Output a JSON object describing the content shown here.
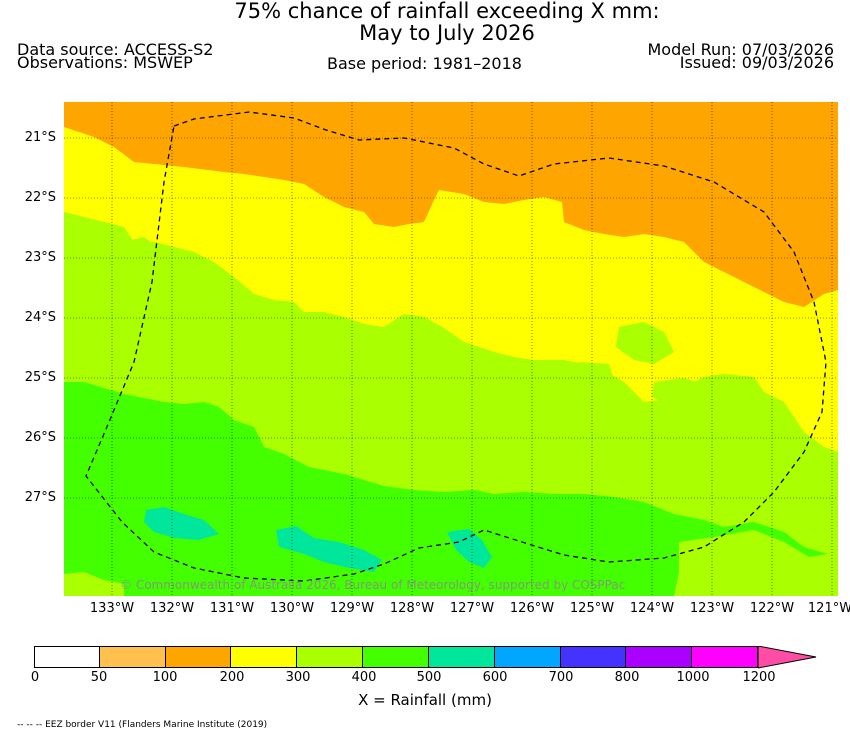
{
  "title": {
    "line1": "75% chance of rainfall exceeding X mm:",
    "line2": "May to July 2026"
  },
  "header": {
    "data_source": "Data source: ACCESS-S2",
    "observations": "Observations: MSWEP",
    "base_period": "Base period: 1981–2018",
    "model_run": "Model Run: 07/03/2026",
    "issued": "Issued: 09/03/2026"
  },
  "map": {
    "lat_labels": [
      "21°S",
      "22°S",
      "23°S",
      "24°S",
      "25°S",
      "26°S",
      "27°S"
    ],
    "lon_labels": [
      "133°W",
      "132°W",
      "131°W",
      "130°W",
      "129°W",
      "128°W",
      "127°W",
      "126°W",
      "125°W",
      "124°W",
      "123°W",
      "122°W",
      "121°W"
    ],
    "copyright": "© Commonwealth of Australia 2026, Bureau of Meteorology, supported by COSPPac"
  },
  "colorbar": {
    "ticks": [
      "0",
      "50",
      "100",
      "200",
      "300",
      "400",
      "500",
      "600",
      "700",
      "800",
      "1000",
      "1200"
    ],
    "colors": [
      "#ffffff",
      "#ffc04d",
      "#ffa500",
      "#ffff00",
      "#aaff00",
      "#44ff00",
      "#00e69a",
      "#00a6ff",
      "#4433ff",
      "#aa00ff",
      "#ff00ff",
      "#ff4da6"
    ],
    "label": "X = Rainfall (mm)"
  },
  "footnote": "-- -- -- EEZ border V11 (Flanders Marine Institute (2019)"
}
